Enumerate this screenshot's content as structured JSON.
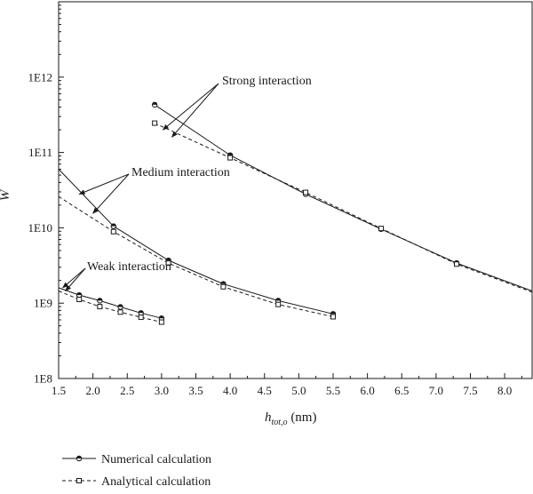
{
  "chart_data": {
    "type": "line",
    "xlabel_main": "h",
    "xlabel_sub": "tot,o",
    "xlabel_unit": " (nm)",
    "ylabel": "W",
    "xlim": [
      1.5,
      8.4
    ],
    "ylim_log10": [
      8,
      13
    ],
    "y_scale": "log",
    "x_ticks": [
      1.5,
      2.0,
      2.5,
      3.0,
      3.5,
      4.0,
      4.5,
      5.0,
      5.5,
      6.0,
      6.5,
      7.0,
      7.5,
      8.0
    ],
    "x_tick_labels": [
      "1.5",
      "2.0",
      "2.5",
      "3.0",
      "3.5",
      "4.0",
      "4.5",
      "5.0",
      "5.5",
      "6.0",
      "6.5",
      "7.0",
      "7.5",
      "8.0"
    ],
    "y_ticks": [
      100000000,
      1000000000,
      10000000000,
      100000000000,
      1000000000000
    ],
    "y_tick_labels": [
      "1E8",
      "1E9",
      "1E10",
      "1E11",
      "1E12"
    ],
    "grid": false,
    "legend_position": "bottom-left, below plot",
    "series": [
      {
        "name": "Numerical calculation",
        "style": "solid",
        "marker": "half-filled circle",
        "groups": [
          {
            "x": [
              1.5,
              1.8,
              2.1,
              2.4,
              2.7,
              3.0
            ],
            "y": [
              1600000000.0,
              1280000000.0,
              1080000000.0,
              890000000.0,
              740000000.0,
              630000000.0
            ]
          },
          {
            "x": [
              1.5,
              2.3,
              3.1,
              3.9,
              4.7,
              5.5
            ],
            "y": [
              60000000000.0,
              10500000000.0,
              3700000000.0,
              1800000000.0,
              1080000000.0,
              720000000.0
            ]
          },
          {
            "x": [
              2.9,
              4.0,
              5.1,
              6.2,
              7.3,
              8.4
            ],
            "y": [
              430000000000.0,
              92000000000.0,
              28000000000.0,
              9600000000.0,
              3400000000.0,
              1450000000.0
            ]
          }
        ]
      },
      {
        "name": "Analytical calculation",
        "style": "dashed",
        "marker": "open square",
        "groups": [
          {
            "x": [
              1.5,
              1.8,
              2.1,
              2.4,
              2.7,
              3.0
            ],
            "y": [
              1450000000.0,
              1120000000.0,
              900000000.0,
              760000000.0,
              650000000.0,
              560000000.0
            ]
          },
          {
            "x": [
              1.5,
              2.3,
              3.1,
              3.9,
              4.7,
              5.5
            ],
            "y": [
              26000000000.0,
              8900000000.0,
              3400000000.0,
              1650000000.0,
              960000000.0,
              660000000.0
            ]
          },
          {
            "x": [
              2.9,
              4.0,
              5.1,
              6.2,
              7.3,
              8.4
            ],
            "y": [
              245000000000.0,
              85000000000.0,
              29500000000.0,
              9800000000.0,
              3300000000.0,
              1400000000.0
            ]
          }
        ]
      }
    ],
    "annotations": [
      {
        "text": "Strong interaction",
        "arrow_targets": [
          [
            3.02,
            200000000000.0
          ],
          [
            3.15,
            160000000000.0
          ]
        ]
      },
      {
        "text": "Medium interaction",
        "arrow_targets": [
          [
            1.8,
            28000000000.0
          ],
          [
            2.0,
            15500000000.0
          ]
        ]
      },
      {
        "text": "Weak interaction",
        "arrow_targets": [
          [
            1.56,
            1600000000.0
          ],
          [
            1.6,
            1450000000.0
          ]
        ]
      }
    ],
    "colors": {
      "line": "#1a1a1a",
      "background": "#ffffff"
    }
  }
}
